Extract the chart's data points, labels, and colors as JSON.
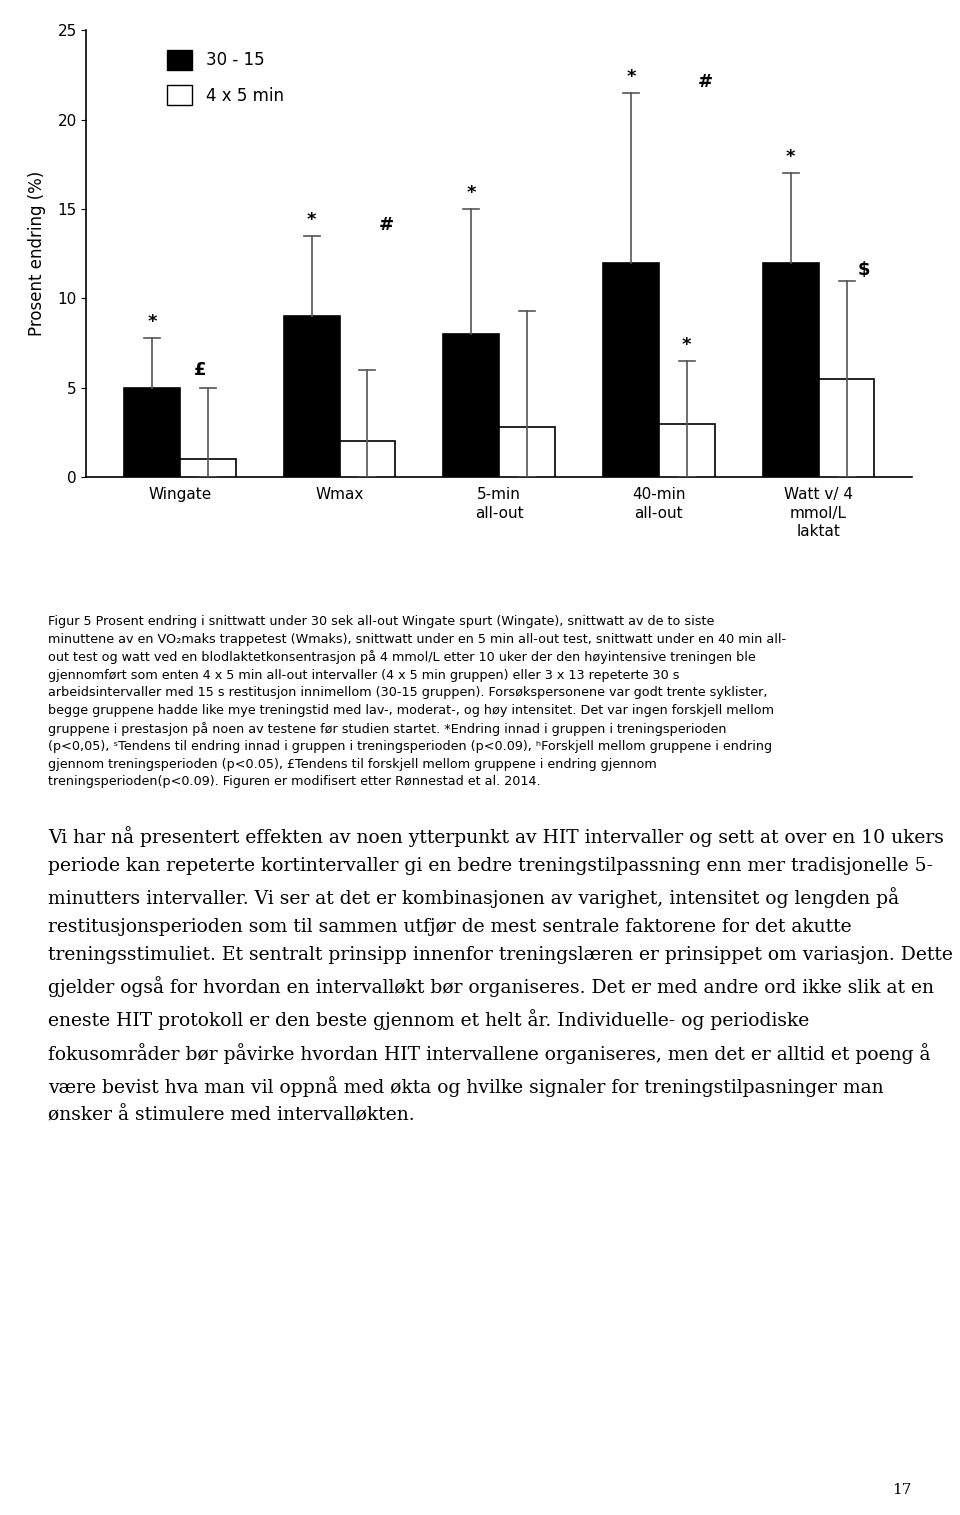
{
  "bar30_15": [
    5.0,
    9.0,
    8.0,
    12.0,
    12.0
  ],
  "bar4x5": [
    1.0,
    2.0,
    2.8,
    3.0,
    5.5
  ],
  "err30_15": [
    2.8,
    4.5,
    7.0,
    9.5,
    5.0
  ],
  "err4x5": [
    4.0,
    4.0,
    6.5,
    3.5,
    5.5
  ],
  "xlabels": [
    "Wingate",
    "Wmax",
    "5-min\nall-out",
    "40-min\nall-out",
    "Watt v/ 4\nmmol/L\nlaktat"
  ],
  "ylim": [
    0,
    25
  ],
  "yticks": [
    0,
    5,
    10,
    15,
    20,
    25
  ],
  "ylabel": "Prosent endring (%)",
  "bar_width": 0.35,
  "color_30_15": "#000000",
  "color_4x5": "#ffffff",
  "legend_30_15": "30 - 15",
  "legend_4x5": "4 x 5 min",
  "caption_line1": "Figur 5 Prosent endring i snittwatt under 30 sek all-out Wingate spurt (Wingate), snittwatt av de to siste",
  "caption_line2": "minuttene av en VO₂maks trappetest (Wmaks), snittwatt under en 5 min all-out test, snittwatt under en 40 min all-",
  "caption_line3": "out test og watt ved en blodlaktetkonsentrasjon på 4 mmol/L etter 10 uker der den høyintensive treningen ble",
  "caption_line4": "gjennomført som enten 4 x 5 min all-out intervaller (4 x 5 min gruppen) eller 3 x 13 repeterte 30 s",
  "caption_line5": "arbeidsintervaller med 15 s restitusjon innimellom (30-15 gruppen). Forsøkspersonene var godt trente syklister,",
  "caption_line6": "begge gruppene hadde like mye treningstid med lav-, moderat-, og høy intensitet. Det var ingen forskjell mellom",
  "caption_line7": "gruppene i prestasjon på noen av testene før studien startet. *Endring innad i gruppen i treningsperioden",
  "caption_line8": "(p<0,05), ˢTendens til endring innad i gruppen i treningsperioden (p<0.09), ʰForskjell mellom gruppene i endring",
  "caption_line9": "gjennom treningsperioden (p<0.05), £Tendens til forskjell mellom gruppene i endring gjennom",
  "caption_line10": "treningsperioden(p<0.09). Figuren er modifisert etter Rønnestad et al. 2014.",
  "body_line1": "Vi har nå presentert effekten av noen ytterpunkt av HIT intervaller og sett at over en 10 ukers",
  "body_line2": "periode kan repeterte kortintervaller gi en bedre treningstilpassning enn mer tradisjonelle 5-",
  "body_line3": "minutters intervaller. Vi ser at det er kombinasjonen av varighet, intensitet og lengden på",
  "body_line4": "restitusjonsperioden som til sammen utfjør de mest sentrale faktorene for det akutte",
  "body_line5": "treningsstimuliet. Et sentralt prinsipp innenfor treningslæren er prinsippet om variasjon. Dette",
  "body_line6": "gjelder også for hvordan en intervalløkt bør organiseres. Det er med andre ord ikke slik at en",
  "body_line7": "eneste HIT protokoll er den beste gjennom et helt år. Individuelle- og periodiske",
  "body_line8": "fokusområder bør påvirke hvordan HIT intervallene organiseres, men det er alltid et poeng å",
  "body_line9": "være bevist hva man vil oppnå med økta og hvilke signaler for treningstilpasninger man",
  "body_line10": "ønsker å stimulere med intervalløkten.",
  "page_number": "17",
  "background_color": "#ffffff"
}
